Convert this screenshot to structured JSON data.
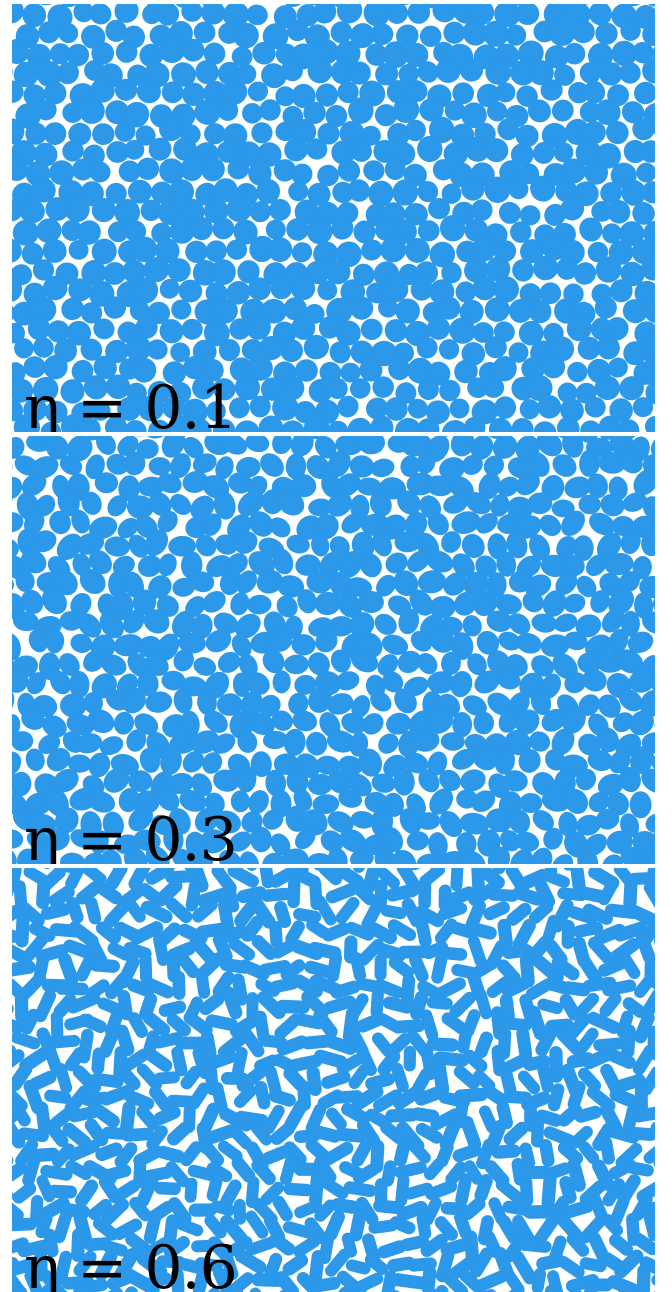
{
  "colors": {
    "particle": "#2b98ea",
    "background": "#ffffff",
    "label": "#000000"
  },
  "panels": [
    {
      "label": "η = 0.1",
      "eta": 0.1,
      "particle_shape": "near-circular disks"
    },
    {
      "label": "η = 0.3",
      "eta": 0.3,
      "particle_shape": "slightly elongated ellipses"
    },
    {
      "label": "η = 0.6",
      "eta": 0.6,
      "particle_shape": "elongated rods"
    }
  ]
}
